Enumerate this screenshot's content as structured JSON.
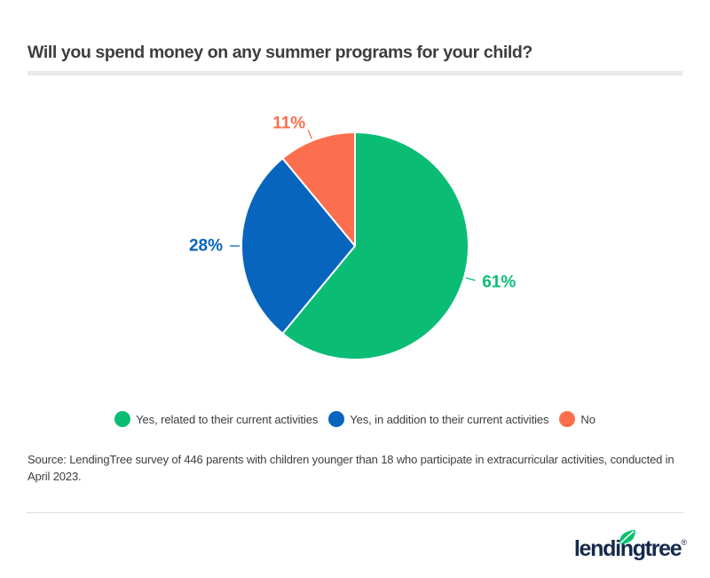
{
  "header": {
    "title": "Will you spend money on any summer programs for your child?"
  },
  "chart_data": {
    "type": "pie",
    "title": "Will you spend money on any summer programs for your child?",
    "labels": [
      "Yes, related to their current activities",
      "Yes, in addition to their current activities",
      "No"
    ],
    "values": [
      61,
      28,
      11
    ],
    "value_labels": [
      "61%",
      "28%",
      "11%"
    ],
    "colors": [
      "#0bbd74",
      "#0765bd",
      "#fc6f4e"
    ],
    "start_angle_deg": 0,
    "direction": "clockwise",
    "legend_position": "bottom",
    "label_angles_deg": [
      106,
      270,
      338
    ],
    "slice_gap_color": "#ffffff"
  },
  "source": {
    "text": "Source: LendingTree survey of 446 parents with children younger than 18 who participate in extracurricular activities, conducted in April 2023."
  },
  "footer": {
    "logo_text": "lendingtree",
    "trademark": "®",
    "brand_navy": "#15294b",
    "brand_green": "#00c06d"
  }
}
